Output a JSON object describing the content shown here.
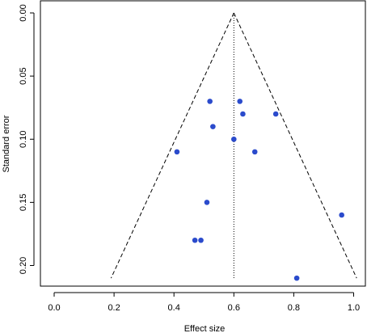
{
  "chart_data": {
    "type": "scatter",
    "title": "",
    "xlabel": "Effect size",
    "ylabel": "Standard error",
    "xlim": [
      -0.05,
      1.02
    ],
    "ylim": [
      0.0,
      0.21
    ],
    "y_reversed": true,
    "xticks": [
      0.0,
      0.2,
      0.4,
      0.6,
      0.8,
      1.0
    ],
    "xtick_labels": [
      "0.0",
      "0.2",
      "0.4",
      "0.6",
      "0.8",
      "1.0"
    ],
    "yticks": [
      0.0,
      0.05,
      0.1,
      0.15,
      0.2
    ],
    "ytick_labels": [
      "0.00",
      "0.05",
      "0.10",
      "0.15",
      "0.20"
    ],
    "grid": false,
    "point_color": "#2b4bcc",
    "funnel": {
      "center": 0.6,
      "apex_se": 0.0,
      "bottom_se": 0.21,
      "left_x": 0.19,
      "right_x": 1.01
    },
    "points": [
      {
        "x": 0.52,
        "y": 0.07
      },
      {
        "x": 0.62,
        "y": 0.07
      },
      {
        "x": 0.63,
        "y": 0.08
      },
      {
        "x": 0.74,
        "y": 0.08
      },
      {
        "x": 0.53,
        "y": 0.09
      },
      {
        "x": 0.6,
        "y": 0.1
      },
      {
        "x": 0.41,
        "y": 0.11
      },
      {
        "x": 0.67,
        "y": 0.11
      },
      {
        "x": 0.51,
        "y": 0.15
      },
      {
        "x": 0.96,
        "y": 0.16
      },
      {
        "x": 0.47,
        "y": 0.18
      },
      {
        "x": 0.49,
        "y": 0.18
      },
      {
        "x": 0.81,
        "y": 0.21
      }
    ]
  }
}
